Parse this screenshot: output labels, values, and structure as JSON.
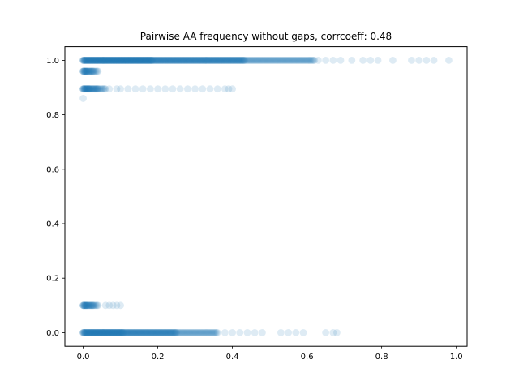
{
  "chart_data": {
    "type": "scatter",
    "title": "Pairwise AA frequency without gaps, corrcoeff: 0.48",
    "xlabel": "",
    "ylabel": "",
    "xlim": [
      -0.049,
      1.029
    ],
    "ylim": [
      -0.05,
      1.05
    ],
    "xticks": [
      0.0,
      0.2,
      0.4,
      0.6,
      0.8,
      1.0
    ],
    "xtick_labels": [
      "0.0",
      "0.2",
      "0.4",
      "0.6",
      "0.8",
      "1.0"
    ],
    "yticks": [
      0.0,
      0.2,
      0.4,
      0.6,
      0.8,
      1.0
    ],
    "ytick_labels": [
      "0.0",
      "0.2",
      "0.4",
      "0.6",
      "0.8",
      "1.0"
    ],
    "grid": false,
    "marker_color": "#1f77b4",
    "marker_alpha": 0.15,
    "bands": [
      {
        "y": 1.0,
        "dense_x": [
          0.0,
          0.62
        ],
        "sparse_x": [
          0.63,
          0.65,
          0.67,
          0.69,
          0.72,
          0.75,
          0.77,
          0.79,
          0.83,
          0.88,
          0.9,
          0.92,
          0.94,
          0.98
        ]
      },
      {
        "y": 0.96,
        "dense_x": [
          0.0,
          0.04
        ],
        "sparse_x": []
      },
      {
        "y": 0.895,
        "dense_x": [
          0.0,
          0.06
        ],
        "sparse_x": [
          0.07,
          0.09,
          0.1,
          0.12,
          0.14,
          0.16,
          0.18,
          0.2,
          0.22,
          0.24,
          0.26,
          0.28,
          0.3,
          0.32,
          0.34,
          0.36,
          0.38,
          0.39,
          0.4
        ]
      },
      {
        "y": 0.86,
        "dense_x": [
          0.0,
          0.0
        ],
        "sparse_x": []
      },
      {
        "y": 0.1,
        "dense_x": [
          0.0,
          0.04
        ],
        "sparse_x": [
          0.06,
          0.07,
          0.08,
          0.09,
          0.1
        ]
      },
      {
        "y": 0.0,
        "dense_x": [
          0.0,
          0.36
        ],
        "sparse_x": [
          0.38,
          0.4,
          0.42,
          0.44,
          0.46,
          0.48,
          0.53,
          0.55,
          0.57,
          0.59,
          0.65,
          0.67,
          0.68
        ]
      }
    ]
  }
}
